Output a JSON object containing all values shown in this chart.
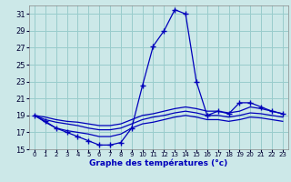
{
  "title": "Graphe des températures (°c)",
  "bg_color": "#cce8e8",
  "grid_color": "#99cccc",
  "line_color": "#0000bb",
  "xlim": [
    -0.5,
    23.5
  ],
  "ylim": [
    15,
    32
  ],
  "yticks": [
    15,
    17,
    19,
    21,
    23,
    25,
    27,
    29,
    31
  ],
  "xticks": [
    0,
    1,
    2,
    3,
    4,
    5,
    6,
    7,
    8,
    9,
    10,
    11,
    12,
    13,
    14,
    15,
    16,
    17,
    18,
    19,
    20,
    21,
    22,
    23
  ],
  "series": [
    {
      "x": [
        0,
        1,
        2,
        3,
        4,
        5,
        6,
        7,
        8,
        9,
        10,
        11,
        12,
        13,
        14,
        15,
        16,
        17,
        18,
        19,
        20,
        21,
        22,
        23
      ],
      "y": [
        19.0,
        18.3,
        17.5,
        17.0,
        16.5,
        16.0,
        15.5,
        15.5,
        15.8,
        17.5,
        22.5,
        27.2,
        29.0,
        31.5,
        31.0,
        23.0,
        19.0,
        19.5,
        19.2,
        20.5,
        20.5,
        20.0,
        19.5,
        19.2
      ],
      "marker": "+"
    },
    {
      "x": [
        0,
        1,
        2,
        3,
        4,
        5,
        6,
        7,
        8,
        9,
        10,
        11,
        12,
        13,
        14,
        15,
        16,
        17,
        18,
        19,
        20,
        21,
        22,
        23
      ],
      "y": [
        19.0,
        18.8,
        18.5,
        18.3,
        18.2,
        18.0,
        17.8,
        17.8,
        18.0,
        18.5,
        19.0,
        19.2,
        19.5,
        19.8,
        20.0,
        19.8,
        19.5,
        19.5,
        19.3,
        19.5,
        20.0,
        19.8,
        19.5,
        19.2
      ],
      "marker": null
    },
    {
      "x": [
        0,
        1,
        2,
        3,
        4,
        5,
        6,
        7,
        8,
        9,
        10,
        11,
        12,
        13,
        14,
        15,
        16,
        17,
        18,
        19,
        20,
        21,
        22,
        23
      ],
      "y": [
        19.0,
        18.5,
        18.2,
        18.0,
        17.8,
        17.5,
        17.3,
        17.3,
        17.5,
        18.0,
        18.5,
        18.8,
        19.0,
        19.3,
        19.5,
        19.3,
        19.0,
        19.0,
        18.8,
        19.0,
        19.3,
        19.2,
        19.0,
        18.8
      ],
      "marker": null
    },
    {
      "x": [
        0,
        1,
        2,
        3,
        4,
        5,
        6,
        7,
        8,
        9,
        10,
        11,
        12,
        13,
        14,
        15,
        16,
        17,
        18,
        19,
        20,
        21,
        22,
        23
      ],
      "y": [
        19.0,
        18.2,
        17.5,
        17.2,
        17.0,
        16.8,
        16.5,
        16.5,
        16.8,
        17.5,
        18.0,
        18.2,
        18.5,
        18.8,
        19.0,
        18.8,
        18.5,
        18.5,
        18.3,
        18.5,
        18.8,
        18.7,
        18.5,
        18.3
      ],
      "marker": null
    }
  ]
}
